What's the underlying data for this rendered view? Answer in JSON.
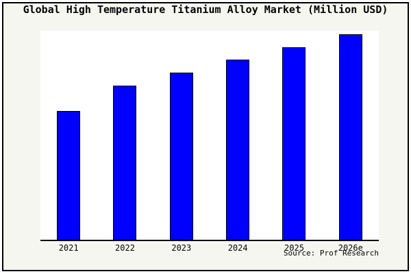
{
  "chart": {
    "title": "Global High Temperature Titanium Alloy Market (Million USD)",
    "source": "Source: Prof Research"
  },
  "colors": {
    "background": "#f6f6f1",
    "plot_background": "#ffffff",
    "bar_fill": "#0000ff",
    "bar_border": "#000000",
    "frame_border": "#000000"
  },
  "chart_data": {
    "type": "bar",
    "title": "Global High Temperature Titanium Alloy Market (Million USD)",
    "categories": [
      "2021",
      "2022",
      "2023",
      "2024",
      "2025",
      "2026e"
    ],
    "values": [
      61.8,
      73.9,
      80.1,
      86.3,
      92.2,
      98.4
    ],
    "value_note": "no numeric y-axis shown in image; values estimated as percent of plot-area height from bar pixel heights",
    "xlabel": "",
    "ylabel": "",
    "ylim": [
      0,
      100
    ],
    "grid": false,
    "legend": false,
    "source": "Source: Prof Research"
  }
}
